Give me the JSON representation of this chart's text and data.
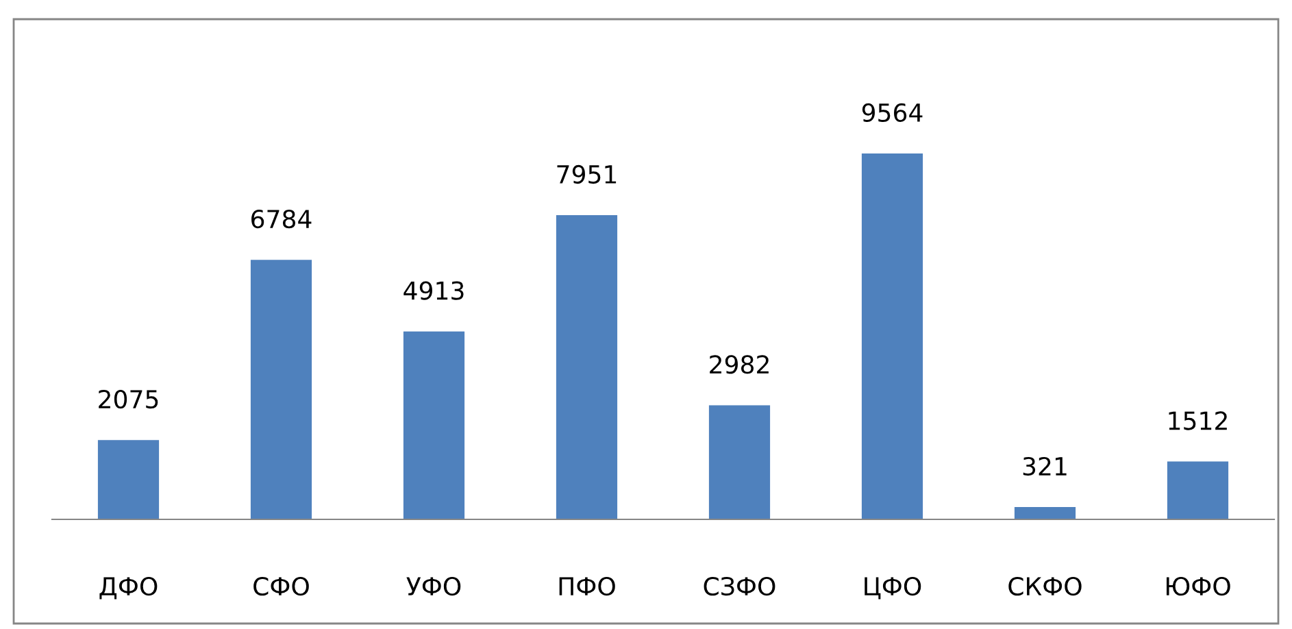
{
  "chart_data": {
    "type": "bar",
    "categories": [
      "ДФО",
      "СФО",
      "УФО",
      "ПФО",
      "СЗФО",
      "ЦФО",
      "СКФО",
      "ЮФО"
    ],
    "values": [
      2075,
      6784,
      4913,
      7951,
      2982,
      9564,
      321,
      1512
    ],
    "color": "#4f81bd",
    "data_labels": true,
    "grid": false,
    "legend": false
  }
}
